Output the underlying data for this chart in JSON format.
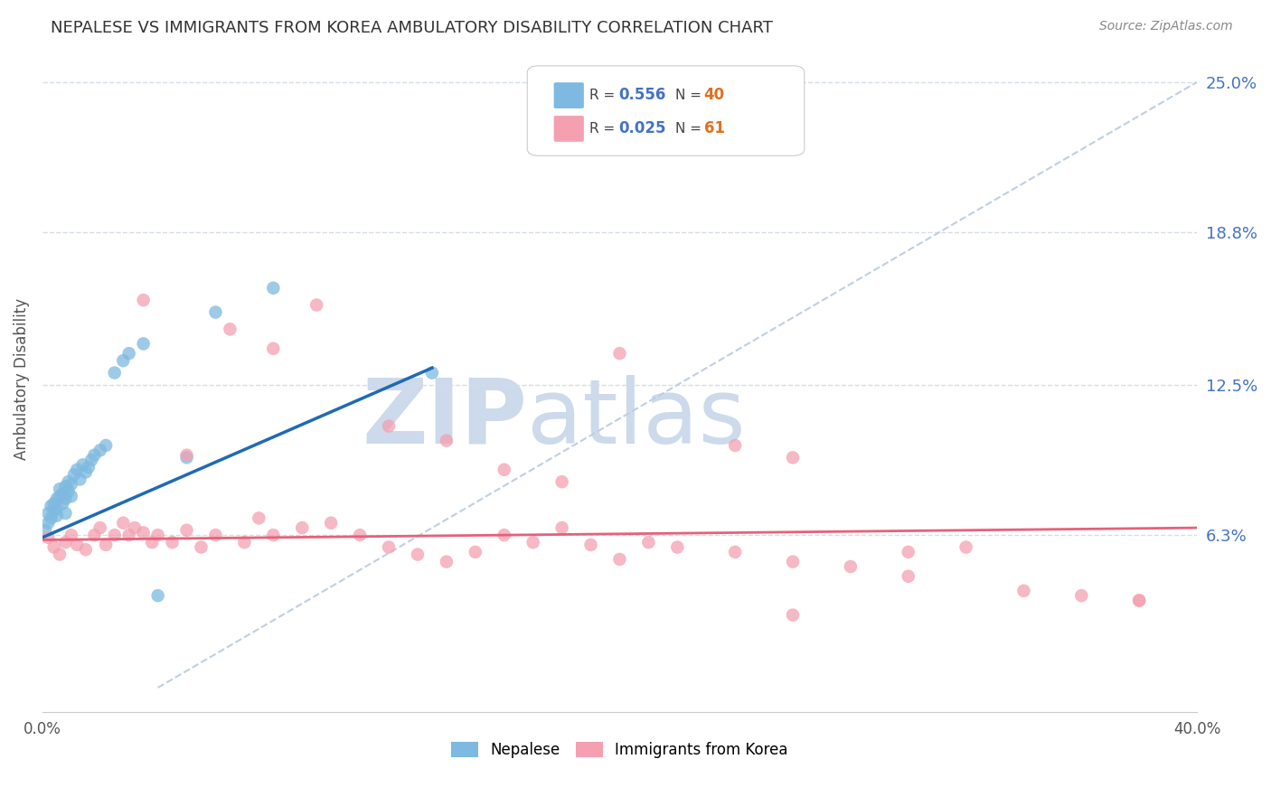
{
  "title": "NEPALESE VS IMMIGRANTS FROM KOREA AMBULATORY DISABILITY CORRELATION CHART",
  "source": "Source: ZipAtlas.com",
  "ylabel": "Ambulatory Disability",
  "x_min": 0.0,
  "x_max": 0.4,
  "y_min": -0.01,
  "y_max": 0.265,
  "x_ticks": [
    0.0,
    0.08,
    0.16,
    0.24,
    0.32,
    0.4
  ],
  "x_tick_labels": [
    "0.0%",
    "",
    "",
    "",
    "",
    "40.0%"
  ],
  "y_tick_labels_right": [
    "25.0%",
    "18.8%",
    "12.5%",
    "6.3%"
  ],
  "y_tick_vals_right": [
    0.25,
    0.188,
    0.125,
    0.063
  ],
  "R_nepalese": 0.556,
  "N_nepalese": 40,
  "R_korea": 0.025,
  "N_korea": 61,
  "color_nepalese": "#7db9e0",
  "color_korea": "#f4a0b0",
  "color_nepalese_line": "#1f6ab5",
  "color_korea_line": "#e8607a",
  "color_trendline_dashed": "#c0cfe0",
  "nepalese_x": [
    0.001,
    0.002,
    0.002,
    0.003,
    0.003,
    0.004,
    0.004,
    0.005,
    0.005,
    0.005,
    0.006,
    0.006,
    0.007,
    0.007,
    0.008,
    0.008,
    0.008,
    0.009,
    0.009,
    0.01,
    0.01,
    0.011,
    0.012,
    0.013,
    0.014,
    0.015,
    0.016,
    0.017,
    0.018,
    0.02,
    0.022,
    0.025,
    0.028,
    0.03,
    0.035,
    0.04,
    0.05,
    0.06,
    0.08,
    0.135
  ],
  "nepalese_y": [
    0.065,
    0.068,
    0.072,
    0.07,
    0.075,
    0.073,
    0.076,
    0.078,
    0.071,
    0.074,
    0.079,
    0.082,
    0.08,
    0.076,
    0.083,
    0.078,
    0.072,
    0.081,
    0.085,
    0.084,
    0.079,
    0.088,
    0.09,
    0.086,
    0.092,
    0.089,
    0.091,
    0.094,
    0.096,
    0.098,
    0.1,
    0.13,
    0.135,
    0.138,
    0.142,
    0.038,
    0.095,
    0.155,
    0.165,
    0.13
  ],
  "korea_x": [
    0.002,
    0.004,
    0.006,
    0.008,
    0.01,
    0.012,
    0.015,
    0.018,
    0.02,
    0.022,
    0.025,
    0.028,
    0.03,
    0.032,
    0.035,
    0.038,
    0.04,
    0.045,
    0.05,
    0.055,
    0.06,
    0.07,
    0.075,
    0.08,
    0.09,
    0.1,
    0.11,
    0.12,
    0.13,
    0.14,
    0.15,
    0.16,
    0.17,
    0.18,
    0.19,
    0.2,
    0.21,
    0.22,
    0.24,
    0.26,
    0.28,
    0.3,
    0.32,
    0.34,
    0.36,
    0.38,
    0.035,
    0.05,
    0.065,
    0.08,
    0.095,
    0.12,
    0.14,
    0.16,
    0.18,
    0.2,
    0.24,
    0.26,
    0.3,
    0.38,
    0.26
  ],
  "korea_y": [
    0.062,
    0.058,
    0.055,
    0.06,
    0.063,
    0.059,
    0.057,
    0.063,
    0.066,
    0.059,
    0.063,
    0.068,
    0.063,
    0.066,
    0.064,
    0.06,
    0.063,
    0.06,
    0.065,
    0.058,
    0.063,
    0.06,
    0.07,
    0.063,
    0.066,
    0.068,
    0.063,
    0.058,
    0.055,
    0.052,
    0.056,
    0.063,
    0.06,
    0.066,
    0.059,
    0.053,
    0.06,
    0.058,
    0.056,
    0.052,
    0.05,
    0.056,
    0.058,
    0.04,
    0.038,
    0.036,
    0.16,
    0.096,
    0.148,
    0.14,
    0.158,
    0.108,
    0.102,
    0.09,
    0.085,
    0.138,
    0.1,
    0.095,
    0.046,
    0.036,
    0.03
  ],
  "watermark_ZIP": "ZIP",
  "watermark_atlas": "atlas",
  "watermark_color": "#ccdaeb",
  "background_color": "#ffffff",
  "grid_color": "#d5dde5"
}
